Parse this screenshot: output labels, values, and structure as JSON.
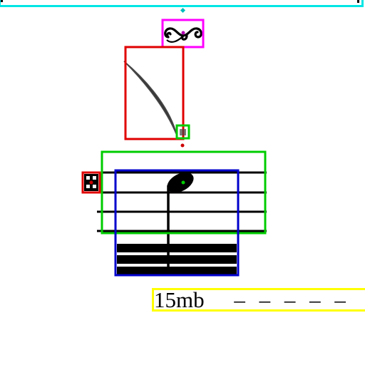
{
  "image": {
    "ottava_text": "15mb",
    "ottava_dashes": "– – – – –",
    "ornament": "turn",
    "notehead": "filled",
    "accidental": "sharp"
  },
  "annotation_colors": {
    "top_bar": "#00e5e5",
    "ornament": "#ff00ff",
    "slur": "#e00000",
    "staff": "#00cc00",
    "note": "#0000cc",
    "accidental": "#e00000",
    "ottava": "#ffff00",
    "dot_small": "#00cc00"
  }
}
